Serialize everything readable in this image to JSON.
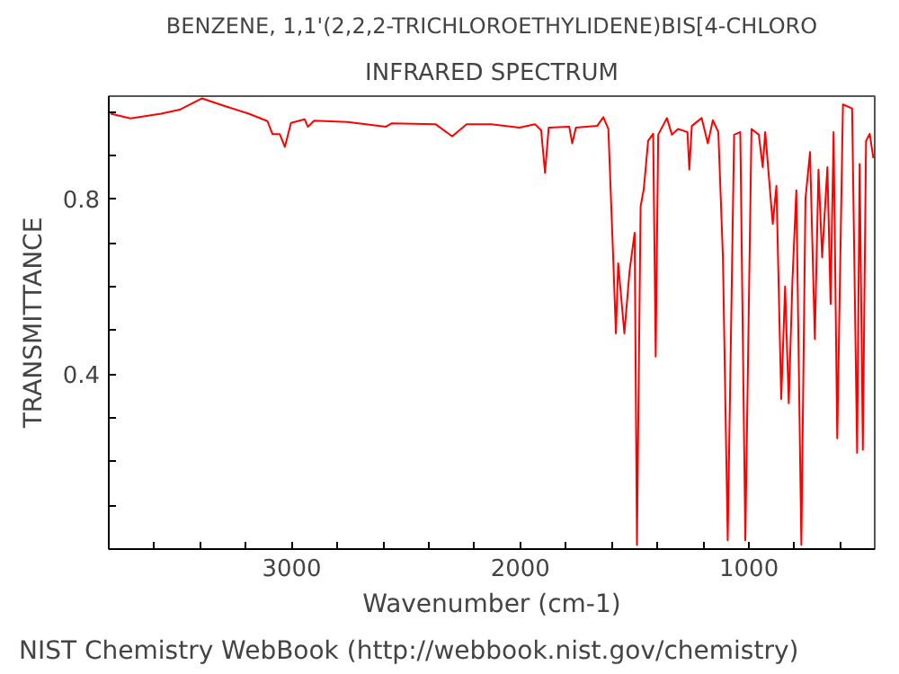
{
  "chart_data": {
    "type": "line",
    "title": "BENZENE, 1,1'(2,2,2-TRICHLOROETHYLIDENE)BIS[4-CHLORO",
    "subtitle": "INFRARED SPECTRUM",
    "xlabel": "Wavenumber (cm-1)",
    "ylabel": "TRANSMITTANCE",
    "annotations": [
      "NIST Chemistry WebBook (http://webbook.nist.gov/chemistry)"
    ],
    "x": [
      3792,
      3705,
      3571,
      3490,
      3392,
      3296,
      3188,
      3106,
      3084,
      3052,
      3030,
      3003,
      2943,
      2929,
      2902,
      2755,
      2589,
      2562,
      2371,
      2298,
      2235,
      2127,
      2004,
      1936,
      1909,
      1892,
      1876,
      1786,
      1773,
      1757,
      1664,
      1637,
      1615,
      1594,
      1582,
      1572,
      1545,
      1522,
      1500,
      1490,
      1474,
      1460,
      1441,
      1419,
      1408,
      1397,
      1359,
      1337,
      1310,
      1269,
      1261,
      1250,
      1207,
      1180,
      1158,
      1134,
      1114,
      1093,
      1065,
      1038,
      1016,
      989,
      957,
      940,
      929,
      896,
      880,
      859,
      842,
      826,
      810,
      793,
      771,
      753,
      733,
      712,
      696,
      680,
      657,
      643,
      630,
      614,
      589,
      549,
      527,
      516,
      502,
      488,
      472,
      456
    ],
    "series": [
      {
        "color": "#ff0000",
        "values": [
          0.995,
          0.984,
          0.995,
          1.004,
          1.03,
          1.013,
          0.995,
          0.978,
          0.948,
          0.948,
          0.919,
          0.974,
          0.982,
          0.965,
          0.979,
          0.976,
          0.965,
          0.973,
          0.971,
          0.943,
          0.971,
          0.971,
          0.963,
          0.971,
          0.957,
          0.86,
          0.963,
          0.965,
          0.927,
          0.963,
          0.967,
          0.987,
          0.96,
          0.667,
          0.493,
          0.653,
          0.493,
          0.637,
          0.723,
          0.01,
          0.783,
          0.823,
          0.933,
          0.949,
          0.44,
          0.947,
          0.985,
          0.947,
          0.96,
          0.953,
          0.867,
          0.967,
          0.985,
          0.927,
          0.98,
          0.953,
          0.667,
          0.02,
          0.947,
          0.953,
          0.02,
          0.96,
          0.947,
          0.873,
          0.953,
          0.743,
          0.83,
          0.343,
          0.6,
          0.333,
          0.613,
          0.82,
          0.01,
          0.8,
          0.907,
          0.48,
          0.867,
          0.667,
          0.873,
          0.56,
          0.953,
          0.253,
          1.016,
          1.007,
          0.22,
          0.88,
          0.227,
          0.933,
          0.949,
          0.893
        ]
      }
    ],
    "xlim": [
      3800,
      450
    ],
    "ylim": [
      0,
      1.035
    ],
    "xticks": [
      {
        "value": 3800,
        "label": null
      },
      {
        "value": 3600,
        "label": null
      },
      {
        "value": 3400,
        "label": null
      },
      {
        "value": 3200,
        "label": null
      },
      3000,
      {
        "value": 2800,
        "label": null
      },
      {
        "value": 2600,
        "label": null
      },
      {
        "value": 2400,
        "label": null
      },
      {
        "value": 2200,
        "label": null
      },
      2000,
      {
        "value": 1800,
        "label": null
      },
      {
        "value": 1600,
        "label": null
      },
      {
        "value": 1400,
        "label": null
      },
      {
        "value": 1200,
        "label": null
      },
      1000,
      {
        "value": 800,
        "label": null
      },
      {
        "value": 600,
        "label": null
      }
    ],
    "yticks": [
      {
        "value": 0.1,
        "label": null
      },
      {
        "value": 0.2,
        "label": null
      },
      {
        "value": 0.3,
        "label": null
      },
      0.4,
      {
        "value": 0.5,
        "label": null
      },
      {
        "value": 0.6,
        "label": null
      },
      {
        "value": 0.7,
        "label": null
      },
      0.8,
      {
        "value": 0.9,
        "label": null
      },
      {
        "value": 1.0,
        "label": null
      }
    ],
    "grid": false,
    "line_style": "solid",
    "marker": "none"
  }
}
